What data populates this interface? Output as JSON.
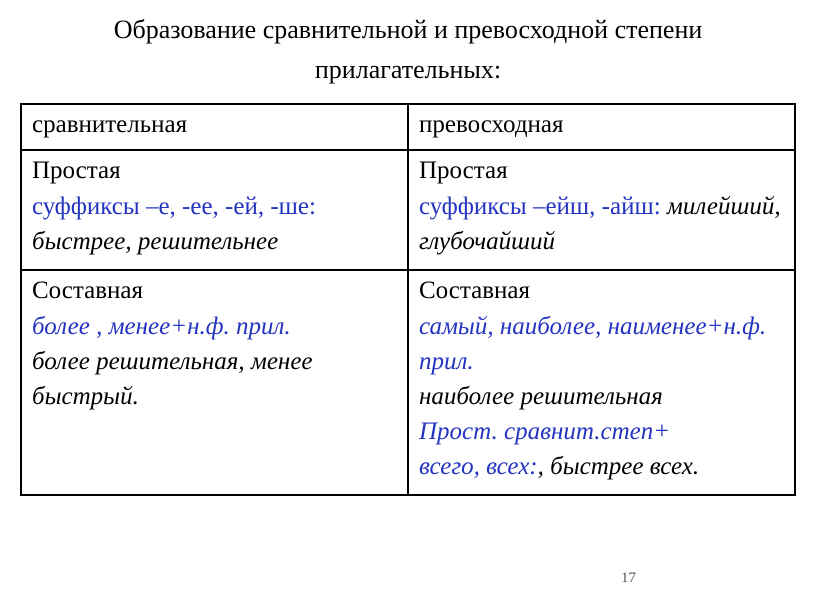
{
  "title": "Образование сравнительной и превосходной степени прилагательных:",
  "header": {
    "left": "сравнительная",
    "right": "превосходная"
  },
  "simple": {
    "label": "Простая",
    "left_suffix": "суффиксы –е, -ее, -ей, -ше:",
    "left_example": " быстрее, решительнее",
    "right_suffix": "суффиксы –ейш, -айш:",
    "right_example": "милейший, глубочайший"
  },
  "compound": {
    "label": "Составная",
    "left_rule": "более , менее+н.ф. прил.",
    "left_example": " более решительная, менее быстрый.",
    "right_rule": "самый, наиболее, наименее+н.ф. прил.",
    "right_example1": "наиболее решительная",
    "right_note": "Прост. сравнит.степ+",
    "right_example2_blue": " всего, всех:",
    "right_example2_black": ", быстрее всех."
  },
  "page_number": "17",
  "colors": {
    "text": "#000000",
    "accent": "#2434c0",
    "border": "#000000",
    "background": "#ffffff"
  }
}
